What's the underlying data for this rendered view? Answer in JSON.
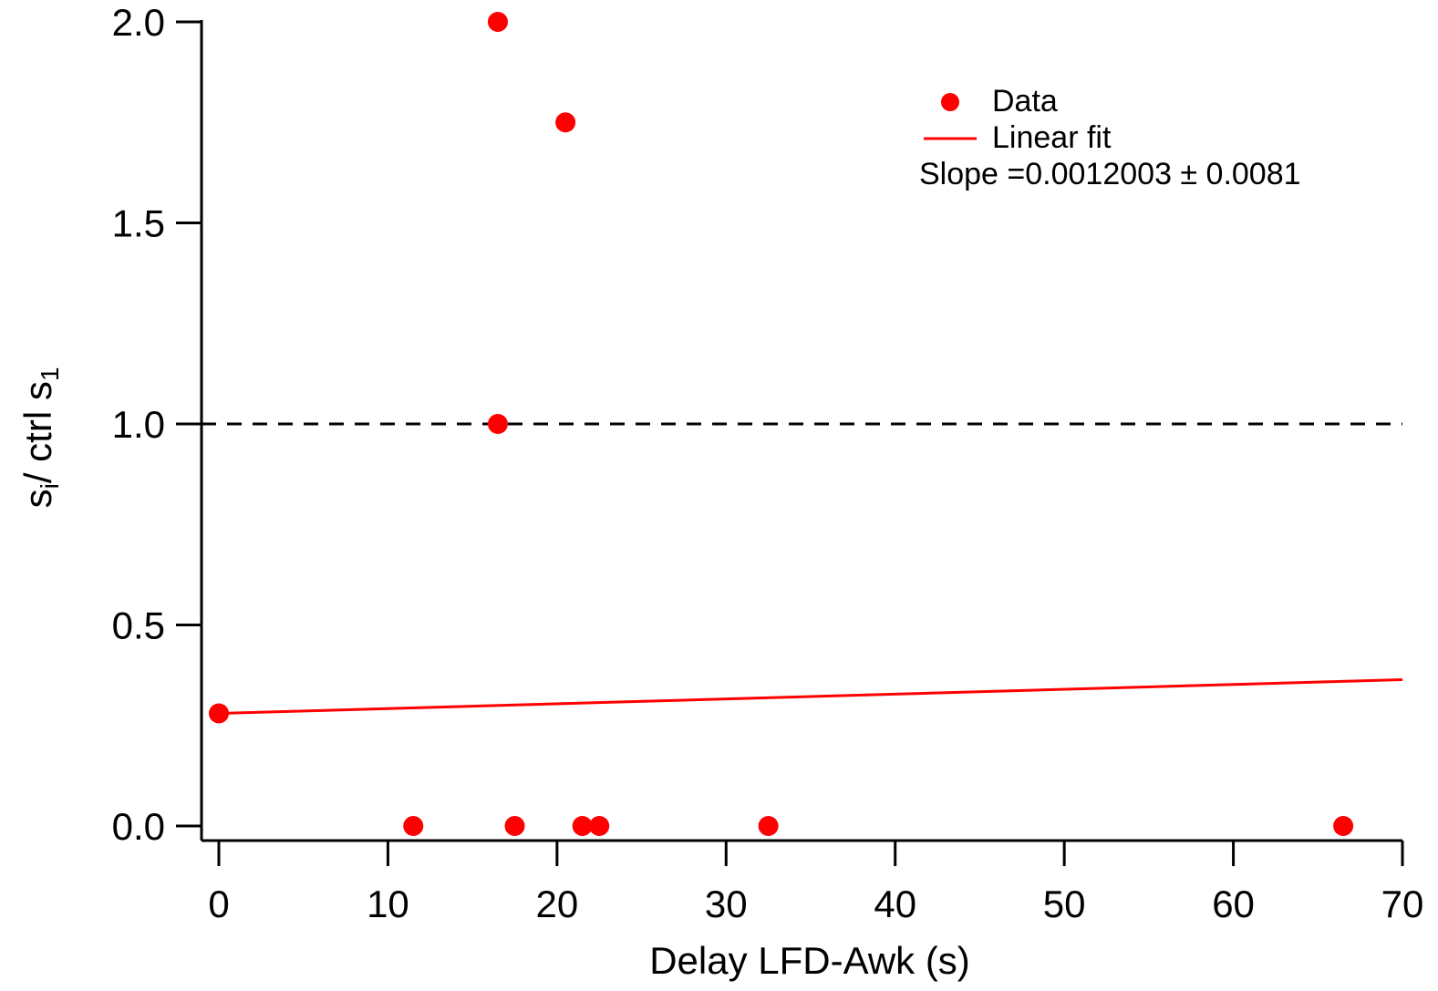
{
  "chart_data": {
    "type": "scatter",
    "title": "",
    "xlabel": "Delay LFD-Awk (s)",
    "ylabel": {
      "main": "s",
      "sub": "i",
      "mid": "/ ctrl s",
      "sub2": "1"
    },
    "xlim": [
      -1,
      70
    ],
    "ylim": [
      -0.04,
      2.0
    ],
    "xticks": [
      0,
      10,
      20,
      30,
      40,
      50,
      60,
      70
    ],
    "yticks": [
      0.0,
      0.5,
      1.0,
      1.5,
      2.0
    ],
    "ytick_labels": [
      "0.0",
      "0.5",
      "1.0",
      "1.5",
      "2.0"
    ],
    "series": [
      {
        "name": "Data",
        "kind": "scatter",
        "color": "#ff0000",
        "points": [
          {
            "x": 0,
            "y": 0.28
          },
          {
            "x": 11.5,
            "y": 0.0
          },
          {
            "x": 16.5,
            "y": 2.0
          },
          {
            "x": 16.5,
            "y": 1.0
          },
          {
            "x": 17.5,
            "y": 0.0
          },
          {
            "x": 20.5,
            "y": 1.75
          },
          {
            "x": 21.5,
            "y": 0.0
          },
          {
            "x": 22.5,
            "y": 0.0
          },
          {
            "x": 32.5,
            "y": 0.0
          },
          {
            "x": 66.5,
            "y": 0.0
          }
        ]
      },
      {
        "name": "Linear fit",
        "kind": "line",
        "color": "#ff0000",
        "points": [
          {
            "x": 0,
            "y": 0.28
          },
          {
            "x": 70,
            "y": 0.364
          }
        ]
      }
    ],
    "reference_line": {
      "y": 1.0,
      "style": "dashed",
      "color": "#000000"
    },
    "annotation": "Slope =0.0012003 ± 0.0081",
    "legend": {
      "placement": "top-right",
      "entries": [
        {
          "label": "Data",
          "marker": "dot"
        },
        {
          "label": "Linear fit",
          "marker": "line"
        }
      ]
    }
  }
}
